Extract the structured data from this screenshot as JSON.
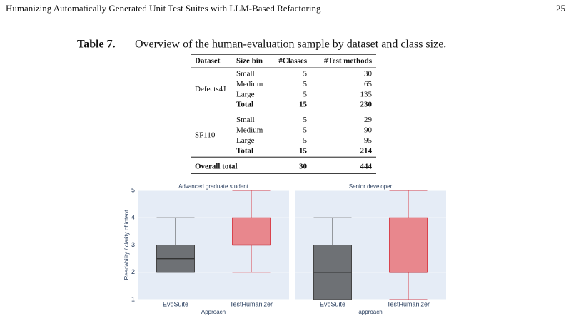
{
  "header": {
    "title": "Humanizing Automatically Generated Unit Test Suites with LLM-Based Refactoring",
    "page": 25
  },
  "table": {
    "caption_label": "Table 7.",
    "caption": "Overview of the human-evaluation sample by dataset and class size.",
    "columns": [
      "Dataset",
      "Size bin",
      "#Classes",
      "#Test methods"
    ],
    "groups": [
      {
        "dataset": "Defects4J",
        "rows": [
          [
            "Small",
            5,
            30
          ],
          [
            "Medium",
            5,
            65
          ],
          [
            "Large",
            5,
            135
          ],
          [
            "Total",
            15,
            230
          ]
        ]
      },
      {
        "dataset": "SF110",
        "rows": [
          [
            "Small",
            5,
            29
          ],
          [
            "Medium",
            5,
            90
          ],
          [
            "Large",
            5,
            95
          ],
          [
            "Total",
            15,
            214
          ]
        ]
      }
    ],
    "overall": [
      "Overall total",
      30,
      444
    ]
  },
  "chart_data": [
    {
      "type": "box",
      "title": "Advanced graduate student",
      "x_label": "Approach",
      "y_label": "Readability / clarity of intent",
      "categories": [
        "EvoSuite",
        "TestHumanizer"
      ],
      "colors": [
        "#6e7175",
        "#e8878d"
      ],
      "min": [
        2,
        2
      ],
      "q1": [
        2,
        3
      ],
      "median": [
        2.5,
        3
      ],
      "q3": [
        3,
        4
      ],
      "max": [
        4,
        5
      ],
      "ylim": [
        1,
        5
      ],
      "yticks": [
        1,
        2,
        3,
        4,
        5
      ],
      "grid": true
    },
    {
      "type": "box",
      "title": "Senior developer",
      "x_label": "approach",
      "categories": [
        "EvoSuite",
        "TestHumanizer"
      ],
      "colors": [
        "#6e7175",
        "#e8878d"
      ],
      "min": [
        1,
        1
      ],
      "q1": [
        1,
        2
      ],
      "median": [
        2,
        2
      ],
      "q3": [
        3,
        4
      ],
      "max": [
        4,
        5
      ],
      "ylim": [
        1,
        5
      ],
      "yticks": [
        1,
        2,
        3,
        4,
        5
      ],
      "grid": true
    }
  ]
}
